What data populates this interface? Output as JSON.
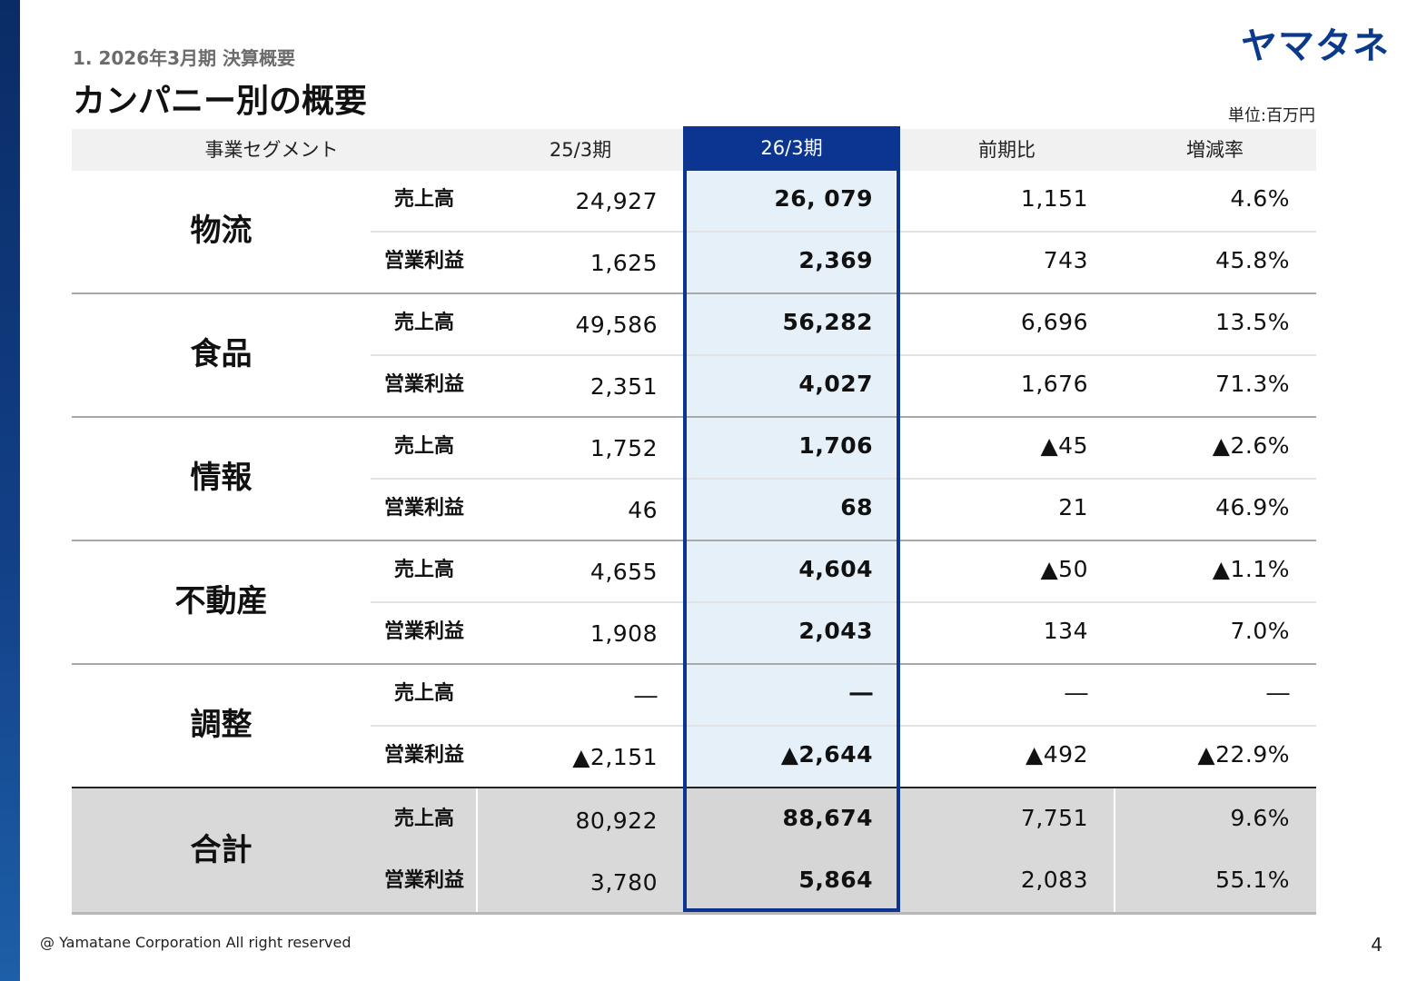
{
  "header": {
    "section": "1. 2026年3月期 決算概要",
    "title": "カンパニー別の概要",
    "logo": "ヤマタネ",
    "unit": "単位:百万円"
  },
  "table": {
    "columns": [
      "事業セグメント",
      "25/3期",
      "26/3期",
      "前期比",
      "増減率"
    ],
    "segments": [
      {
        "name": "物流",
        "rows": [
          {
            "metric": "売上高",
            "prev": "24,927",
            "cur": "26, 079",
            "diff": "1,151",
            "rate": "4.6%"
          },
          {
            "metric": "営業利益",
            "prev": "1,625",
            "cur": "2,369",
            "diff": "743",
            "rate": "45.8%"
          }
        ]
      },
      {
        "name": "食品",
        "rows": [
          {
            "metric": "売上高",
            "prev": "49,586",
            "cur": "56,282",
            "diff": "6,696",
            "rate": "13.5%"
          },
          {
            "metric": "営業利益",
            "prev": "2,351",
            "cur": "4,027",
            "diff": "1,676",
            "rate": "71.3%"
          }
        ]
      },
      {
        "name": "情報",
        "rows": [
          {
            "metric": "売上高",
            "prev": "1,752",
            "cur": "1,706",
            "diff": "▲45",
            "rate": "▲2.6%"
          },
          {
            "metric": "営業利益",
            "prev": "46",
            "cur": "68",
            "diff": "21",
            "rate": "46.9%"
          }
        ]
      },
      {
        "name": "不動産",
        "rows": [
          {
            "metric": "売上高",
            "prev": "4,655",
            "cur": "4,604",
            "diff": "▲50",
            "rate": "▲1.1%"
          },
          {
            "metric": "営業利益",
            "prev": "1,908",
            "cur": "2,043",
            "diff": "134",
            "rate": "7.0%"
          }
        ]
      },
      {
        "name": "調整",
        "rows": [
          {
            "metric": "売上高",
            "prev": "―",
            "cur": "―",
            "diff": "―",
            "rate": "―"
          },
          {
            "metric": "営業利益",
            "prev": "▲2,151",
            "cur": "▲2,644",
            "diff": "▲492",
            "rate": "▲22.9%"
          }
        ]
      },
      {
        "name": "合計",
        "rows": [
          {
            "metric": "売上高",
            "prev": "80,922",
            "cur": "88,674",
            "diff": "7,751",
            "rate": "9.6%"
          },
          {
            "metric": "営業利益",
            "prev": "3,780",
            "cur": "5,864",
            "diff": "2,083",
            "rate": "55.1%"
          }
        ]
      }
    ]
  },
  "footer": {
    "copyright": "@ Yamatane Corporation All right reserved",
    "page": "4"
  }
}
